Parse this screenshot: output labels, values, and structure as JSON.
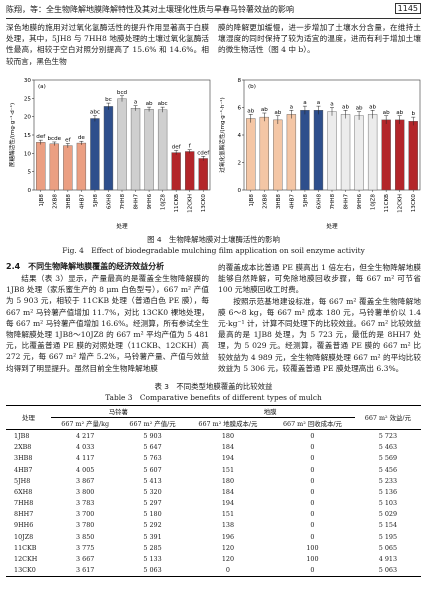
{
  "header": {
    "running_title": "陈翔，等：全生物降解地膜降解特性及其对土壤理化性质与旱春马铃薯效益的影响",
    "page_number": "1145"
  },
  "intro": {
    "left": "深色地膜的施用对过氧化氢酶活性的提升作用显著高于白膜处理，其中，5JH8 与 7HH8 地膜处理的土壤过氧化氢酶活性最高，相较于空白对照分别提高了 15.6% 和 14.6%。相较而言，黑色生物",
    "right": "膜的降解更加缓慢，进一步增加了土壤水分含量，在维持土壤湿度的同时保持了较为适宜的温度，进而有利于增加土壤的微生物活性（图 4 中 b）。"
  },
  "figure": {
    "panels": [
      {
        "label": "(a)",
        "y_label": "蔗糖酶活性/(mg·g⁻¹·d⁻¹)",
        "x_label": "处理",
        "ylim": [
          0,
          30
        ],
        "yticks": [
          0,
          5,
          10,
          15,
          20,
          25,
          30
        ],
        "categories": [
          "1JB8",
          "2XB8",
          "3HB8",
          "4HB7",
          "5JH8",
          "6XH8",
          "7HH8",
          "8HH7",
          "9HH6",
          "10JZ8",
          "11CKB",
          "12CKH",
          "13CK0"
        ],
        "values": [
          13.0,
          12.6,
          12.1,
          12.8,
          19.5,
          22.8,
          24.9,
          22.3,
          22.0,
          21.9,
          10.2,
          10.5,
          8.6
        ],
        "errors": [
          0.6,
          0.5,
          0.6,
          0.5,
          0.8,
          0.9,
          0.8,
          0.7,
          0.6,
          0.7,
          0.6,
          0.5,
          0.6
        ],
        "letters": [
          "def",
          "bcde",
          "ef",
          "de",
          "abc",
          "bc",
          "bcd",
          "a",
          "ab",
          "abc",
          "def",
          "f",
          "cdef"
        ],
        "colors": [
          "#eb9f82",
          "#eb9f82",
          "#eb9f82",
          "#eb9f82",
          "#2e4f8c",
          "#2e4f8c",
          "#cfcfcf",
          "#cfcfcf",
          "#cfcfcf",
          "#cfcfcf",
          "#b3262a",
          "#b3262a",
          "#b3262a"
        ]
      },
      {
        "label": "(b)",
        "y_label": "过氧化氢酶活性/(mg·g⁻¹·h⁻¹)",
        "x_label": "处理",
        "ylim": [
          0,
          8
        ],
        "yticks": [
          0,
          2,
          4,
          6,
          8
        ],
        "categories": [
          "1JB8",
          "2XB8",
          "3HB8",
          "4HB7",
          "5JH8",
          "6XH8",
          "7HH8",
          "8HH7",
          "9HH6",
          "10JZ8",
          "11CKB",
          "12CKH",
          "13CK0"
        ],
        "values": [
          5.2,
          5.3,
          5.1,
          5.5,
          5.8,
          5.8,
          5.7,
          5.5,
          5.4,
          5.5,
          5.1,
          5.1,
          5.0
        ],
        "errors": [
          0.3,
          0.3,
          0.3,
          0.3,
          0.3,
          0.3,
          0.3,
          0.3,
          0.3,
          0.3,
          0.3,
          0.3,
          0.3
        ],
        "letters": [
          "ab",
          "ab",
          "ab",
          "a",
          "a",
          "a",
          "a",
          "ab",
          "ab",
          "ab",
          "ab",
          "ab",
          "b"
        ],
        "colors": [
          "#f4c6a5",
          "#f4c6a5",
          "#f4c6a5",
          "#f4c6a5",
          "#2e4f8c",
          "#2e4f8c",
          "#ececec",
          "#ececec",
          "#ececec",
          "#ececec",
          "#b3262a",
          "#b3262a",
          "#b3262a"
        ]
      }
    ],
    "caption_cn": "图 4　生物降解地膜对土壤酶活性的影响",
    "caption_en": "Fig. 4　Effect of biodegradable mulching film application on soil enzyme activity"
  },
  "section": {
    "heading": "2.4　不同生物降解地膜覆盖的经济效益分析",
    "left": "结果（表 3）显示，产量最高的是覆盖全生物降解膜的 1JB8 处理（家乐蜜生产的 8 μm 白色型号），667 m² 产值为 5 903 元，相较于 11CKB 处理（普通白色 PE 膜），每 667 m² 马铃薯产值增加 11.7%，对比 13CK0 裸地处理，每 667 m² 马铃薯产值增加 16.6%。经测算，所有参试全生物降解膜处理 1JB8～10JZ8 的 667 m² 平均产值为 5 481 元，比覆盖普通 PE 膜的对照处理（11CKB、12CKH）高 272 元，每 667 m² 增产 5.2%，马铃薯产量、产值与效益均得到了明显提升。虽然目前全生物降解地膜",
    "right": [
      "的覆盖成本比普通 PE 膜高出 1 倍左右，但全生物降解地膜能够自然降解，可免除地膜回收步骤，每 667 m² 可节省 100 元地膜回收工时费。",
      "按照示范基地建设标准，每 667 m² 覆盖全生物降解地膜 6～8 kg，每 667 m² 成本 180 元，马铃薯单价以 1.4 元·kg⁻¹ 计，计算不同处理下的比较效益。667 m² 比较效益最高的是 1JB8 处理，为 5 723 元，最低的是 8HH7 处理，为 5 029 元。经测算，覆盖普通 PE 膜的 667 m² 比较效益为 4 989 元，全生物降解膜处理 667 m² 的平均比较效益为 5 306 元，较覆盖普通 PE 膜处理高出 6.3%。"
    ]
  },
  "table": {
    "title_cn": "表 3　不同类型地膜覆盖的比较效益",
    "title_en": "Table 3　Comparative benefits of different types of mulch",
    "header": {
      "treatment": "处理",
      "groups": [
        {
          "name": "马铃薯",
          "columns": [
            "667 m² 产量/kg",
            "667 m² 产值/元"
          ]
        },
        {
          "name": "地膜",
          "columns": [
            "667 m² 地膜成本/元",
            "667 m² 回收成本/元"
          ]
        }
      ],
      "benefit": "667 m² 效益/元"
    },
    "rows": [
      [
        "1JB8",
        "4 217",
        "5 903",
        "180",
        "0",
        "5 723"
      ],
      [
        "2XB8",
        "4 033",
        "5 647",
        "184",
        "0",
        "5 463"
      ],
      [
        "3HB8",
        "4 117",
        "5 763",
        "194",
        "0",
        "5 569"
      ],
      [
        "4HB7",
        "4 005",
        "5 607",
        "151",
        "0",
        "5 456"
      ],
      [
        "5JH8",
        "3 867",
        "5 413",
        "180",
        "0",
        "5 233"
      ],
      [
        "6XH8",
        "3 800",
        "5 320",
        "184",
        "0",
        "5 136"
      ],
      [
        "7HH8",
        "3 783",
        "5 297",
        "194",
        "0",
        "5 103"
      ],
      [
        "8HH7",
        "3 700",
        "5 180",
        "151",
        "0",
        "5 029"
      ],
      [
        "9HH6",
        "3 780",
        "5 292",
        "138",
        "0",
        "5 154"
      ],
      [
        "10JZ8",
        "3 850",
        "5 391",
        "196",
        "0",
        "5 195"
      ],
      [
        "11CKB",
        "3 775",
        "5 285",
        "120",
        "100",
        "5 065"
      ],
      [
        "12CKH",
        "3 667",
        "5 133",
        "120",
        "100",
        "4 913"
      ],
      [
        "13CK0",
        "3 617",
        "5 063",
        "0",
        "0",
        "5 063"
      ]
    ]
  }
}
